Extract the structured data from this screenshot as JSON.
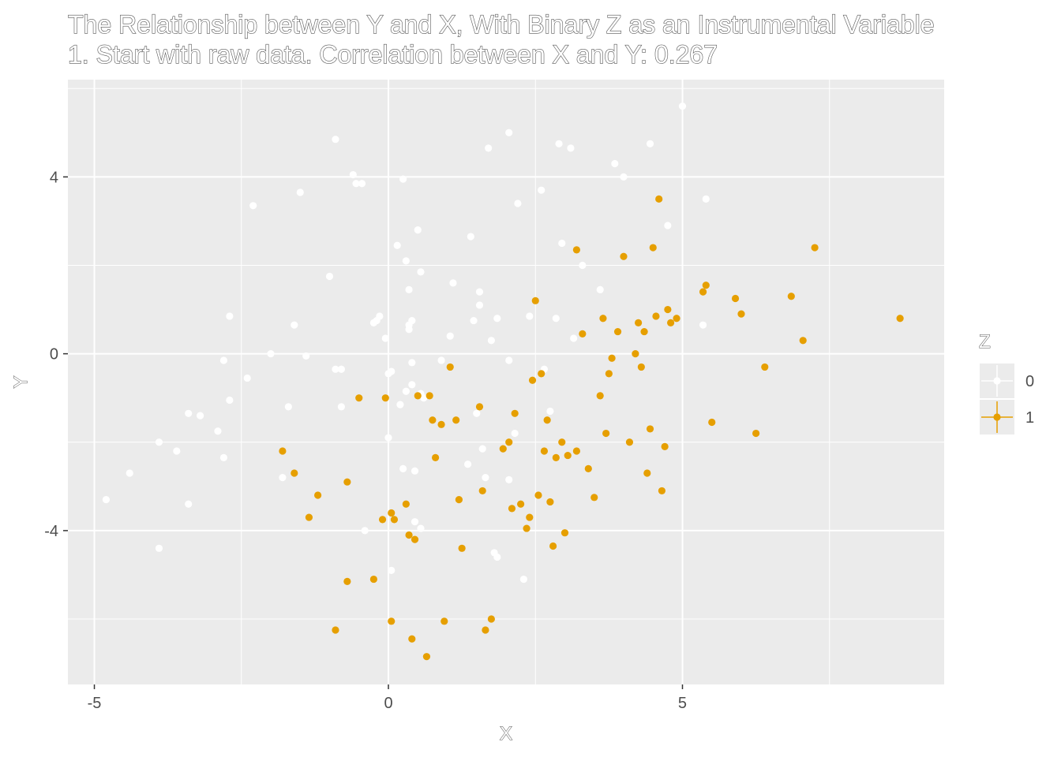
{
  "chart_data": {
    "type": "scatter",
    "title": "The Relationship between Y and X, With Binary Z as an Instrumental Variable",
    "subtitle": "1. Start with raw data. Correlation between X and Y: 0.267",
    "xlabel": "X",
    "ylabel": "Y",
    "xlim": [
      -5.45,
      9.45
    ],
    "ylim": [
      -7.48,
      6.2
    ],
    "x_ticks": [
      -5,
      0,
      5
    ],
    "y_ticks": [
      -4,
      0,
      4
    ],
    "grid": true,
    "legend": {
      "title": "Z",
      "position": "right",
      "entries": [
        "0",
        "1"
      ]
    },
    "colors": {
      "panel": "#ebebeb",
      "grid": "#ffffff",
      "z0": "#ffffff",
      "z1": "#e69f00"
    },
    "series": [
      {
        "name": "0",
        "color": "#ffffff",
        "x": [
          -4.8,
          -4.4,
          -3.9,
          -3.9,
          -3.6,
          -3.4,
          -3.4,
          -3.2,
          -2.9,
          -2.8,
          -2.8,
          -2.7,
          -2.7,
          -2.4,
          -2.3,
          -2.0,
          -1.8,
          -1.7,
          -1.6,
          -1.5,
          -1.4,
          -1.0,
          -0.9,
          -0.9,
          -0.8,
          -0.8,
          -0.6,
          -0.55,
          -0.45,
          -0.4,
          -0.25,
          -0.2,
          -0.15,
          -0.05,
          0.0,
          0.0,
          0.05,
          0.05,
          0.15,
          0.2,
          0.25,
          0.25,
          0.3,
          0.3,
          0.35,
          0.35,
          0.35,
          0.4,
          0.4,
          0.4,
          0.45,
          0.45,
          0.5,
          0.55,
          0.55,
          0.55,
          0.6,
          0.9,
          1.05,
          1.1,
          1.35,
          1.4,
          1.45,
          1.5,
          1.55,
          1.55,
          1.6,
          1.65,
          1.7,
          1.75,
          1.8,
          1.85,
          1.85,
          2.05,
          2.05,
          2.05,
          2.15,
          2.2,
          2.3,
          2.4,
          2.6,
          2.65,
          2.75,
          2.85,
          2.9,
          2.95,
          3.1,
          3.15,
          3.3,
          3.6,
          3.85,
          4.0,
          4.45,
          4.75,
          5.0,
          5.35,
          5.4
        ],
        "y": [
          -3.3,
          -2.7,
          -4.4,
          -2.0,
          -2.2,
          -3.4,
          -1.35,
          -1.4,
          -1.75,
          -2.35,
          -0.15,
          0.85,
          -1.05,
          -0.55,
          3.35,
          0.0,
          -2.8,
          -1.2,
          0.65,
          3.65,
          -0.05,
          1.75,
          4.85,
          -0.35,
          -1.2,
          -0.35,
          4.05,
          3.85,
          3.85,
          -4.0,
          0.7,
          0.75,
          0.85,
          0.35,
          -1.9,
          -0.45,
          -4.9,
          -0.4,
          2.45,
          -1.15,
          3.95,
          -2.6,
          2.1,
          -0.85,
          1.45,
          0.55,
          0.65,
          -0.2,
          -0.7,
          0.75,
          -2.65,
          -3.8,
          2.8,
          1.85,
          -3.95,
          -0.9,
          -1.0,
          -0.15,
          0.4,
          1.6,
          -2.5,
          2.65,
          0.75,
          -1.35,
          1.1,
          1.4,
          -2.15,
          -2.8,
          4.65,
          0.3,
          -4.5,
          0.8,
          -4.6,
          5.0,
          -0.15,
          -2.85,
          -1.8,
          3.4,
          -5.1,
          0.85,
          3.7,
          -0.35,
          -1.3,
          0.8,
          4.75,
          2.5,
          4.65,
          0.35,
          2.0,
          1.45,
          4.3,
          4.0,
          4.75,
          2.9,
          5.6,
          0.65,
          3.5
        ]
      },
      {
        "name": "1",
        "color": "#e69f00",
        "x": [
          -1.8,
          -1.6,
          -1.35,
          -1.2,
          -0.9,
          -0.7,
          -0.7,
          -0.5,
          -0.25,
          -0.1,
          -0.05,
          0.05,
          0.05,
          0.1,
          0.3,
          0.35,
          0.4,
          0.45,
          0.5,
          0.65,
          0.7,
          0.75,
          0.8,
          0.9,
          0.95,
          1.05,
          1.15,
          1.2,
          1.25,
          1.55,
          1.6,
          1.65,
          1.75,
          1.95,
          2.05,
          2.1,
          2.15,
          2.25,
          2.35,
          2.4,
          2.45,
          2.5,
          2.55,
          2.6,
          2.65,
          2.7,
          2.75,
          2.8,
          2.85,
          2.95,
          3.0,
          3.05,
          3.2,
          3.2,
          3.3,
          3.4,
          3.5,
          3.6,
          3.65,
          3.7,
          3.75,
          3.8,
          3.9,
          4.0,
          4.1,
          4.2,
          4.25,
          4.3,
          4.35,
          4.4,
          4.45,
          4.5,
          4.55,
          4.6,
          4.65,
          4.7,
          4.75,
          4.8,
          4.9,
          5.35,
          5.4,
          5.5,
          5.9,
          6.0,
          6.25,
          6.4,
          6.85,
          7.05,
          7.25,
          8.7
        ],
        "y": [
          -2.2,
          -2.7,
          -3.7,
          -3.2,
          -6.25,
          -2.9,
          -5.15,
          -1.0,
          -5.1,
          -3.75,
          -1.0,
          -3.6,
          -6.05,
          -3.75,
          -3.4,
          -4.1,
          -6.45,
          -4.2,
          -0.95,
          -6.85,
          -0.95,
          -1.5,
          -2.35,
          -1.6,
          -6.05,
          -0.3,
          -1.5,
          -3.3,
          -4.4,
          -1.2,
          -3.1,
          -6.25,
          -6.0,
          -2.15,
          -2.0,
          -3.5,
          -1.35,
          -3.4,
          -3.95,
          -3.7,
          -0.6,
          1.2,
          -3.2,
          -0.45,
          -2.2,
          -1.5,
          -3.35,
          -4.35,
          -2.35,
          -2.0,
          -4.05,
          -2.3,
          2.35,
          -2.2,
          0.45,
          -2.6,
          -3.25,
          -0.95,
          0.8,
          -1.8,
          -0.45,
          -0.1,
          0.5,
          2.2,
          -2.0,
          0.0,
          0.7,
          -0.3,
          0.5,
          -2.7,
          -1.7,
          2.4,
          0.85,
          3.5,
          -3.1,
          -2.1,
          1.0,
          0.7,
          0.8,
          1.4,
          1.55,
          -1.55,
          1.25,
          0.9,
          -1.8,
          -0.3,
          1.3,
          0.3,
          2.4,
          0.8
        ]
      }
    ]
  }
}
